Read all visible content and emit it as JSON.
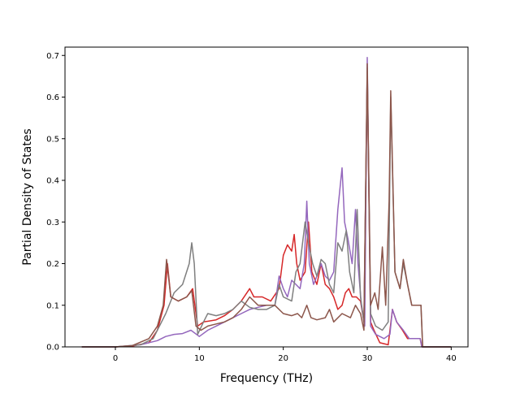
{
  "chart_data": {
    "type": "line",
    "title": "",
    "xlabel": "Frequency (THz)",
    "ylabel": "Partial Density of States",
    "xlim": [
      -6,
      42
    ],
    "ylim": [
      0,
      0.72
    ],
    "xticks": [
      0,
      10,
      20,
      30,
      40
    ],
    "yticks": [
      0.0,
      0.1,
      0.2,
      0.3,
      0.4,
      0.5,
      0.6,
      0.7
    ],
    "xtick_labels": [
      "0",
      "10",
      "20",
      "30",
      "40"
    ],
    "ytick_labels": [
      "0.0",
      "0.1",
      "0.2",
      "0.3",
      "0.4",
      "0.5",
      "0.6",
      "0.7"
    ],
    "grid": false,
    "legend": "none",
    "series": [
      {
        "color": "#d62728",
        "points": [
          [
            -4,
            0
          ],
          [
            0,
            0
          ],
          [
            2,
            0.002
          ],
          [
            4,
            0.01
          ],
          [
            5,
            0.04
          ],
          [
            5.8,
            0.1
          ],
          [
            6.2,
            0.2
          ],
          [
            6.6,
            0.12
          ],
          [
            7.5,
            0.11
          ],
          [
            8.5,
            0.12
          ],
          [
            9.2,
            0.14
          ],
          [
            9.8,
            0.05
          ],
          [
            10.5,
            0.06
          ],
          [
            12,
            0.065
          ],
          [
            13,
            0.075
          ],
          [
            14,
            0.09
          ],
          [
            15,
            0.11
          ],
          [
            16,
            0.14
          ],
          [
            16.5,
            0.12
          ],
          [
            17.5,
            0.12
          ],
          [
            18.5,
            0.11
          ],
          [
            19.5,
            0.14
          ],
          [
            20,
            0.22
          ],
          [
            20.5,
            0.245
          ],
          [
            21,
            0.23
          ],
          [
            21.3,
            0.27
          ],
          [
            21.6,
            0.2
          ],
          [
            22,
            0.16
          ],
          [
            22.6,
            0.18
          ],
          [
            23,
            0.3
          ],
          [
            23.4,
            0.18
          ],
          [
            24,
            0.15
          ],
          [
            24.5,
            0.2
          ],
          [
            25,
            0.15
          ],
          [
            25.5,
            0.14
          ],
          [
            26,
            0.12
          ],
          [
            26.5,
            0.09
          ],
          [
            27,
            0.1
          ],
          [
            27.4,
            0.13
          ],
          [
            27.8,
            0.14
          ],
          [
            28.2,
            0.12
          ],
          [
            28.7,
            0.12
          ],
          [
            29.2,
            0.11
          ],
          [
            29.6,
            0.06
          ],
          [
            30,
            0.66
          ],
          [
            30.4,
            0.06
          ],
          [
            30.8,
            0.04
          ],
          [
            31.5,
            0.01
          ],
          [
            32.5,
            0.005
          ],
          [
            33,
            0.09
          ],
          [
            33.5,
            0.06
          ],
          [
            34.2,
            0.04
          ],
          [
            34.8,
            0.02
          ],
          [
            36.3,
            0.02
          ],
          [
            36.5,
            0
          ],
          [
            40,
            0
          ]
        ]
      },
      {
        "color": "#9467bd",
        "points": [
          [
            -4,
            0
          ],
          [
            0,
            0
          ],
          [
            3,
            0.005
          ],
          [
            5,
            0.015
          ],
          [
            6,
            0.025
          ],
          [
            7,
            0.03
          ],
          [
            8,
            0.032
          ],
          [
            9,
            0.04
          ],
          [
            10,
            0.025
          ],
          [
            11,
            0.04
          ],
          [
            12,
            0.05
          ],
          [
            13,
            0.06
          ],
          [
            14,
            0.07
          ],
          [
            15,
            0.08
          ],
          [
            16,
            0.09
          ],
          [
            17,
            0.095
          ],
          [
            18,
            0.1
          ],
          [
            19,
            0.1
          ],
          [
            19.5,
            0.17
          ],
          [
            20,
            0.14
          ],
          [
            20.5,
            0.12
          ],
          [
            21,
            0.16
          ],
          [
            21.5,
            0.15
          ],
          [
            22,
            0.14
          ],
          [
            22.5,
            0.2
          ],
          [
            22.8,
            0.35
          ],
          [
            23.1,
            0.2
          ],
          [
            23.6,
            0.15
          ],
          [
            24,
            0.17
          ],
          [
            24.5,
            0.2
          ],
          [
            25,
            0.17
          ],
          [
            25.5,
            0.16
          ],
          [
            26,
            0.18
          ],
          [
            26.5,
            0.33
          ],
          [
            27,
            0.43
          ],
          [
            27.3,
            0.3
          ],
          [
            27.7,
            0.26
          ],
          [
            28.2,
            0.2
          ],
          [
            28.6,
            0.33
          ],
          [
            28.9,
            0.2
          ],
          [
            29.3,
            0.1
          ],
          [
            29.7,
            0.05
          ],
          [
            30,
            0.695
          ],
          [
            30.4,
            0.05
          ],
          [
            31,
            0.03
          ],
          [
            32,
            0.02
          ],
          [
            32.7,
            0.03
          ],
          [
            33,
            0.09
          ],
          [
            33.5,
            0.06
          ],
          [
            34.3,
            0.04
          ],
          [
            35,
            0.02
          ],
          [
            36.3,
            0.02
          ],
          [
            36.5,
            0
          ],
          [
            40,
            0
          ]
        ]
      },
      {
        "color": "#7f7f7f",
        "points": [
          [
            -4,
            0
          ],
          [
            0,
            0
          ],
          [
            3,
            0.005
          ],
          [
            4.5,
            0.02
          ],
          [
            6,
            0.08
          ],
          [
            7,
            0.13
          ],
          [
            8,
            0.15
          ],
          [
            8.8,
            0.2
          ],
          [
            9.1,
            0.25
          ],
          [
            9.4,
            0.2
          ],
          [
            9.8,
            0.03
          ],
          [
            10.5,
            0.06
          ],
          [
            11,
            0.08
          ],
          [
            12,
            0.075
          ],
          [
            13,
            0.08
          ],
          [
            14,
            0.09
          ],
          [
            15,
            0.11
          ],
          [
            16,
            0.095
          ],
          [
            17,
            0.09
          ],
          [
            18,
            0.09
          ],
          [
            19,
            0.1
          ],
          [
            19.5,
            0.15
          ],
          [
            20,
            0.12
          ],
          [
            21,
            0.11
          ],
          [
            21.5,
            0.18
          ],
          [
            22,
            0.2
          ],
          [
            22.6,
            0.3
          ],
          [
            23,
            0.25
          ],
          [
            23.5,
            0.2
          ],
          [
            24,
            0.17
          ],
          [
            24.5,
            0.21
          ],
          [
            25,
            0.2
          ],
          [
            25.5,
            0.15
          ],
          [
            26,
            0.13
          ],
          [
            26.5,
            0.25
          ],
          [
            27,
            0.23
          ],
          [
            27.5,
            0.28
          ],
          [
            27.9,
            0.18
          ],
          [
            28.4,
            0.13
          ],
          [
            28.8,
            0.33
          ],
          [
            29.2,
            0.12
          ],
          [
            29.6,
            0.06
          ],
          [
            30,
            0.67
          ],
          [
            30.4,
            0.08
          ],
          [
            31,
            0.05
          ],
          [
            31.8,
            0.04
          ],
          [
            32.5,
            0.06
          ],
          [
            32.8,
            0.6
          ],
          [
            33.3,
            0.18
          ],
          [
            33.9,
            0.14
          ],
          [
            34.3,
            0.2
          ],
          [
            34.8,
            0.15
          ],
          [
            35.3,
            0.1
          ],
          [
            36.4,
            0.1
          ],
          [
            36.6,
            0
          ],
          [
            40,
            0
          ]
        ]
      },
      {
        "color": "#8c564b",
        "points": [
          [
            -4,
            0
          ],
          [
            0,
            0
          ],
          [
            2,
            0.003
          ],
          [
            4,
            0.02
          ],
          [
            5,
            0.05
          ],
          [
            5.7,
            0.1
          ],
          [
            6.1,
            0.21
          ],
          [
            6.6,
            0.12
          ],
          [
            7.5,
            0.11
          ],
          [
            8.5,
            0.12
          ],
          [
            9.1,
            0.135
          ],
          [
            9.6,
            0.05
          ],
          [
            10.2,
            0.04
          ],
          [
            11,
            0.05
          ],
          [
            12,
            0.055
          ],
          [
            13,
            0.06
          ],
          [
            14,
            0.07
          ],
          [
            15,
            0.09
          ],
          [
            16,
            0.12
          ],
          [
            17,
            0.1
          ],
          [
            18,
            0.1
          ],
          [
            19,
            0.1
          ],
          [
            20,
            0.08
          ],
          [
            21,
            0.075
          ],
          [
            21.7,
            0.08
          ],
          [
            22.2,
            0.07
          ],
          [
            22.8,
            0.1
          ],
          [
            23.3,
            0.07
          ],
          [
            24,
            0.065
          ],
          [
            25,
            0.07
          ],
          [
            25.5,
            0.09
          ],
          [
            26,
            0.06
          ],
          [
            27,
            0.08
          ],
          [
            28,
            0.07
          ],
          [
            28.6,
            0.1
          ],
          [
            29.2,
            0.08
          ],
          [
            29.6,
            0.04
          ],
          [
            30,
            0.68
          ],
          [
            30.4,
            0.1
          ],
          [
            30.9,
            0.13
          ],
          [
            31.3,
            0.09
          ],
          [
            31.8,
            0.24
          ],
          [
            32.2,
            0.1
          ],
          [
            32.6,
            0.35
          ],
          [
            32.8,
            0.615
          ],
          [
            33.3,
            0.18
          ],
          [
            33.9,
            0.14
          ],
          [
            34.3,
            0.21
          ],
          [
            34.8,
            0.15
          ],
          [
            35.3,
            0.1
          ],
          [
            36.4,
            0.1
          ],
          [
            36.6,
            0
          ],
          [
            40,
            0
          ]
        ]
      }
    ]
  }
}
